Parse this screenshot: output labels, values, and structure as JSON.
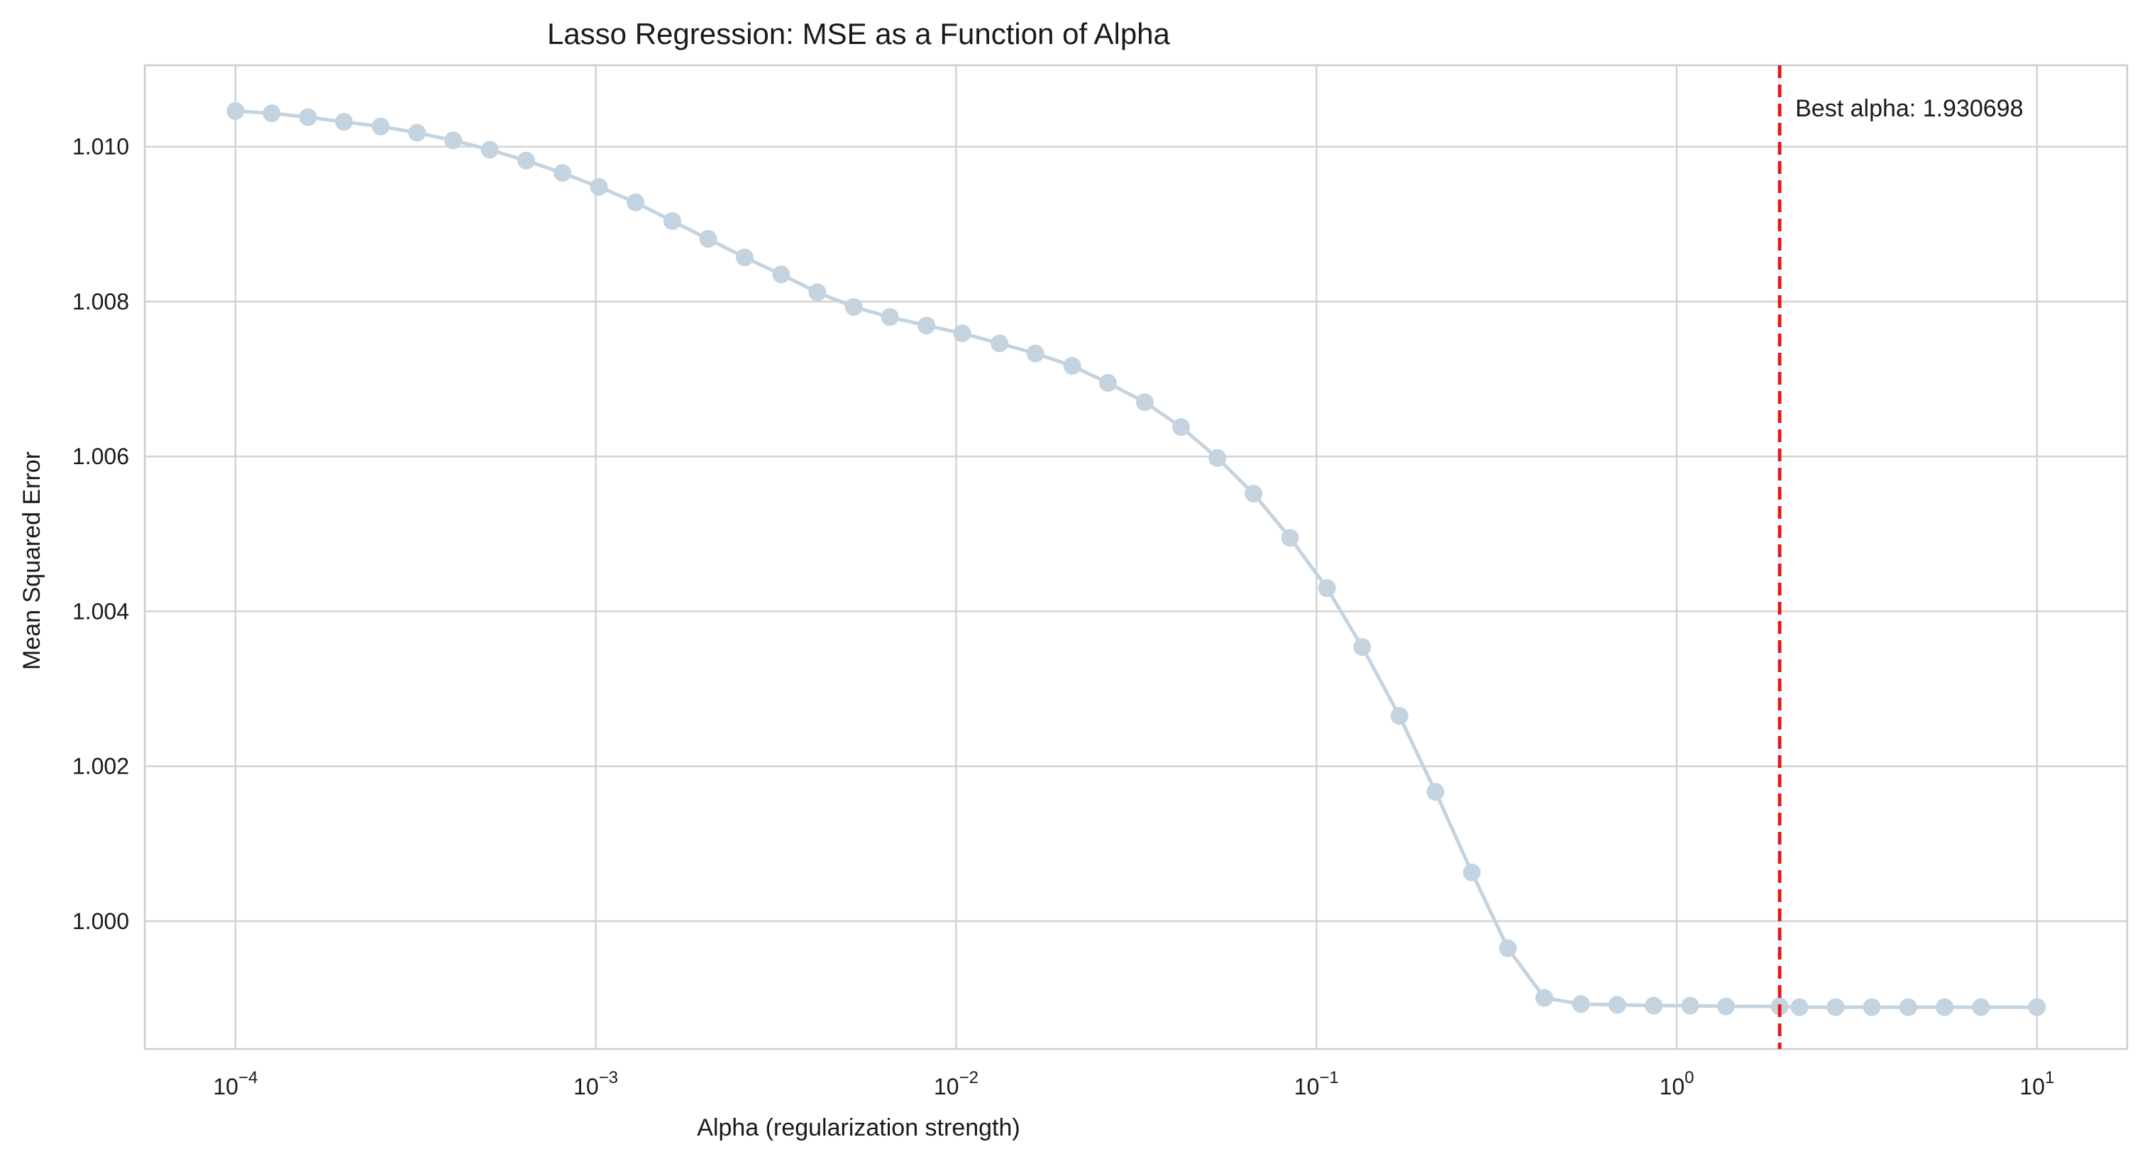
{
  "chart_data": {
    "type": "line",
    "title": "Lasso Regression: MSE as a Function of Alpha",
    "xlabel": "Alpha (regularization strength)",
    "ylabel": "Mean Squared Error",
    "x_scale": "log",
    "xlim": [
      5.6e-05,
      17.8
    ],
    "ylim": [
      0.99835,
      1.01105
    ],
    "grid": true,
    "x_ticks": [
      {
        "value": 0.0001,
        "base": "10",
        "exp": "−4"
      },
      {
        "value": 0.001,
        "base": "10",
        "exp": "−3"
      },
      {
        "value": 0.01,
        "base": "10",
        "exp": "−2"
      },
      {
        "value": 0.1,
        "base": "10",
        "exp": "−1"
      },
      {
        "value": 1,
        "base": "10",
        "exp": "0"
      },
      {
        "value": 10,
        "base": "10",
        "exp": "1"
      }
    ],
    "y_ticks": [
      {
        "value": 1.0,
        "label": "1.000"
      },
      {
        "value": 1.002,
        "label": "1.002"
      },
      {
        "value": 1.004,
        "label": "1.004"
      },
      {
        "value": 1.006,
        "label": "1.006"
      },
      {
        "value": 1.008,
        "label": "1.008"
      },
      {
        "value": 1.01,
        "label": "1.010"
      }
    ],
    "series": [
      {
        "color": "#c4d3e0",
        "x": [
          0.0001,
          0.000126,
          0.000159,
          0.0002,
          0.000253,
          0.000319,
          0.000402,
          0.000508,
          0.000641,
          0.000808,
          0.00102,
          0.00129,
          0.00163,
          0.00205,
          0.00259,
          0.00327,
          0.00412,
          0.0052,
          0.00655,
          0.00827,
          0.0104,
          0.0132,
          0.0166,
          0.021,
          0.0264,
          0.0334,
          0.0421,
          0.0531,
          0.0669,
          0.0845,
          0.107,
          0.134,
          0.17,
          0.214,
          0.27,
          0.34,
          0.429,
          0.542,
          0.684,
          0.863,
          1.09,
          1.37,
          1.93,
          2.19,
          2.76,
          3.48,
          4.39,
          5.54,
          6.99,
          10.0
        ],
        "values": [
          1.01046,
          1.01043,
          1.01038,
          1.01032,
          1.01026,
          1.01018,
          1.01008,
          1.00996,
          1.00982,
          1.00966,
          1.00948,
          1.00928,
          1.00904,
          1.00881,
          1.00857,
          1.00835,
          1.00812,
          1.00793,
          1.0078,
          1.00769,
          1.00759,
          1.00746,
          1.00733,
          1.00717,
          1.00695,
          1.0067,
          1.00638,
          1.00598,
          1.00552,
          1.00495,
          1.0043,
          1.00354,
          1.00265,
          1.00167,
          1.00063,
          0.99965,
          0.99901,
          0.99893,
          0.99892,
          0.99891,
          0.99891,
          0.9989,
          0.9989,
          0.99889,
          0.99889,
          0.99889,
          0.99889,
          0.99889,
          0.99889,
          0.99889
        ]
      }
    ],
    "best_alpha": {
      "value": 1.930698,
      "label": "Best alpha: 1.930698",
      "color": "#e31a1c"
    }
  }
}
